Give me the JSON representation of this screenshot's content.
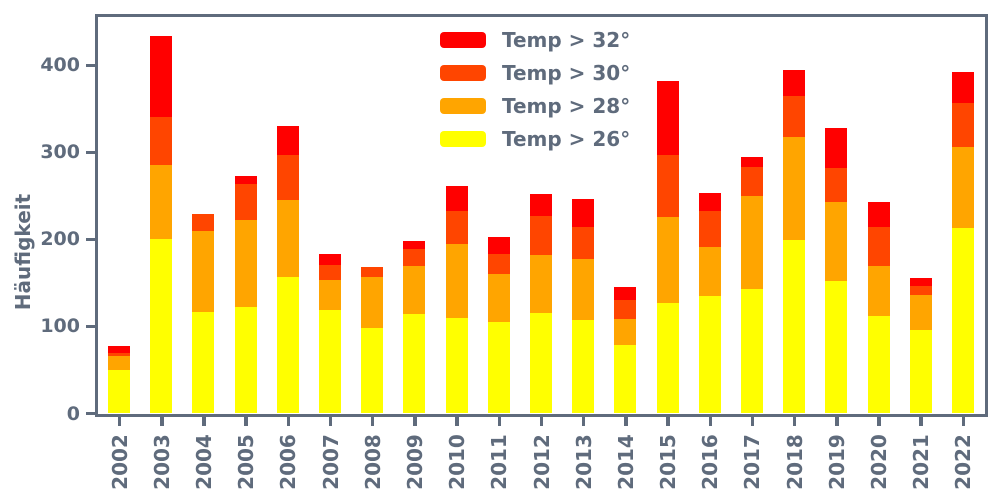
{
  "figure": {
    "ylabel": "Häufigkeit",
    "background": "#ffffff",
    "axis_color": "#5F6B7C",
    "text_color": "#5F6B7C"
  },
  "chart_data": {
    "type": "bar",
    "stacked": true,
    "title": "",
    "xlabel": "",
    "ylabel": "Häufigkeit",
    "grid": false,
    "yticks": [
      0,
      100,
      200,
      300,
      400
    ],
    "ylim": [
      0,
      455
    ],
    "categories": [
      "2002",
      "2003",
      "2004",
      "2005",
      "2006",
      "2007",
      "2008",
      "2009",
      "2010",
      "2011",
      "2012",
      "2013",
      "2014",
      "2015",
      "2016",
      "2017",
      "2018",
      "2019",
      "2020",
      "2021",
      "2022"
    ],
    "series": [
      {
        "name": "Temp > 26°",
        "color": "#FFFF00",
        "values": [
          49,
          200,
          116,
          122,
          156,
          118,
          98,
          114,
          109,
          104,
          115,
          107,
          78,
          126,
          135,
          142,
          199,
          152,
          111,
          95,
          213
        ]
      },
      {
        "name": "Temp > 28°",
        "color": "#FFA500",
        "values": [
          17,
          85,
          93,
          100,
          89,
          35,
          58,
          55,
          85,
          56,
          67,
          70,
          30,
          99,
          56,
          107,
          118,
          91,
          58,
          41,
          93
        ]
      },
      {
        "name": "Temp > 30°",
        "color": "#FF4500",
        "values": [
          3,
          55,
          20,
          41,
          51,
          17,
          12,
          19,
          38,
          23,
          44,
          37,
          22,
          72,
          41,
          34,
          47,
          39,
          45,
          10,
          50
        ]
      },
      {
        "name": "Temp > 32°",
        "color": "#FF0000",
        "values": [
          8,
          93,
          0,
          9,
          34,
          13,
          0,
          10,
          29,
          19,
          26,
          32,
          15,
          85,
          21,
          11,
          30,
          45,
          29,
          9,
          36
        ]
      }
    ],
    "legend": {
      "position": "upper center",
      "order": [
        "Temp > 32°",
        "Temp > 30°",
        "Temp > 28°",
        "Temp > 26°"
      ]
    }
  }
}
